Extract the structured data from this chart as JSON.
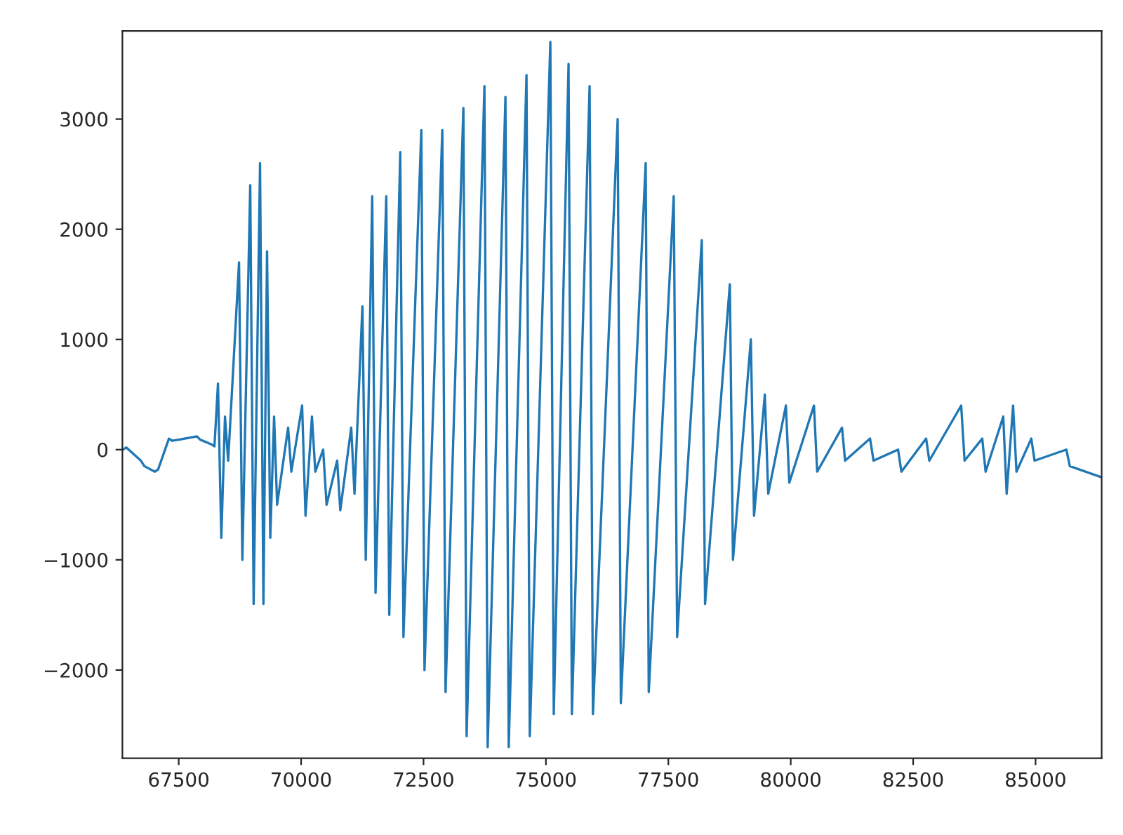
{
  "chart_data": {
    "type": "line",
    "x": [
      66360,
      66430,
      66727,
      66800,
      67013,
      67080,
      67300,
      67370,
      67872,
      67940,
      68159,
      68230,
      68302,
      68370,
      68445,
      68510,
      68732,
      68800,
      68961,
      69030,
      69161,
      69230,
      69304,
      69370,
      69448,
      69510,
      69734,
      69800,
      70020,
      70090,
      70221,
      70290,
      70450,
      70520,
      70736,
      70800,
      71023,
      71090,
      71252,
      71320,
      71452,
      71520,
      71739,
      71800,
      72025,
      72090,
      72455,
      72520,
      72884,
      72950,
      73314,
      73380,
      73744,
      73810,
      74173,
      74240,
      74603,
      74670,
      75090,
      75160,
      75462,
      75530,
      75892,
      75960,
      76465,
      76530,
      77037,
      77100,
      77610,
      77680,
      78183,
      78250,
      78756,
      78820,
      79185,
      79250,
      79471,
      79540,
      79901,
      79970,
      80474,
      80540,
      81047,
      81110,
      81620,
      81690,
      82192,
      82260,
      82765,
      82830,
      83481,
      83550,
      83911,
      83980,
      84340,
      84410,
      84541,
      84610,
      84913,
      84980,
      85629,
      85700,
      86345
    ],
    "series": [
      {
        "color": "#1f77b4",
        "values": [
          0,
          20,
          -100,
          -150,
          -200,
          -180,
          100,
          80,
          120,
          90,
          50,
          30,
          600,
          -800,
          300,
          -100,
          1700,
          -1000,
          2400,
          -1400,
          2600,
          -1400,
          1800,
          -800,
          300,
          -500,
          200,
          -200,
          400,
          -600,
          300,
          -200,
          0,
          -500,
          -100,
          -550,
          200,
          -400,
          1300,
          -1000,
          2300,
          -1300,
          2300,
          -1500,
          2700,
          -1700,
          2900,
          -2000,
          2900,
          -2200,
          3100,
          -2600,
          3300,
          -2700,
          3200,
          -2700,
          3400,
          -2600,
          3700,
          -2400,
          3500,
          -2400,
          3300,
          -2400,
          3000,
          -2300,
          2600,
          -2200,
          2300,
          -1700,
          1900,
          -1400,
          1500,
          -1000,
          1000,
          -600,
          500,
          -400,
          400,
          -300,
          400,
          -200,
          200,
          -100,
          100,
          -100,
          0,
          -200,
          100,
          -100,
          400,
          -100,
          100,
          -200,
          300,
          -400,
          400,
          -200,
          100,
          -100,
          0,
          -150,
          -250
        ]
      }
    ],
    "xlim": [
      66350,
      86350
    ],
    "ylim": [
      -2800,
      3800
    ],
    "xticks": [
      67500,
      70000,
      72500,
      75000,
      77500,
      80000,
      82500,
      85000
    ],
    "yticks": [
      {
        "value": -2000,
        "label": "−2000"
      },
      {
        "value": -1000,
        "label": "−1000"
      },
      0,
      1000,
      2000,
      3000
    ],
    "grid": false,
    "legend": false,
    "marker": "none",
    "line_style": "solid"
  }
}
